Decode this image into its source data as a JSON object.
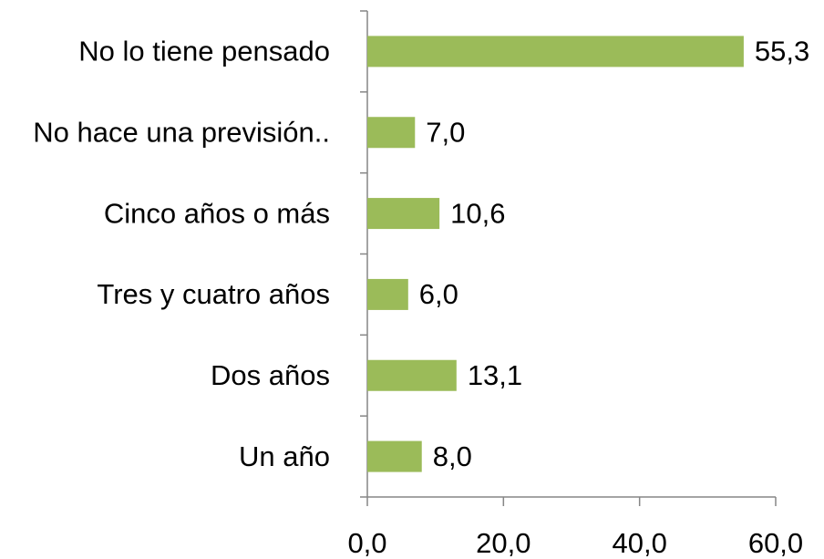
{
  "chart_data": {
    "type": "bar",
    "orientation": "horizontal",
    "categories": [
      "No lo tiene pensado",
      "No hace una previsión..",
      "Cinco años o más",
      "Tres y cuatro años",
      "Dos años",
      "Un año"
    ],
    "values": [
      55.3,
      7.0,
      10.6,
      6.0,
      13.1,
      8.0
    ],
    "value_labels": [
      "55,3",
      "7,0",
      "10,6",
      "6,0",
      "13,1",
      "8,0"
    ],
    "color": "#9bbb59",
    "xlim": [
      0,
      60
    ],
    "xticks": [
      {
        "value": 0,
        "label": "0,0"
      },
      {
        "value": 20,
        "label": "20,0"
      },
      {
        "value": 40,
        "label": "40,0"
      },
      {
        "value": 60,
        "label": "60,0"
      }
    ],
    "grid": false
  }
}
